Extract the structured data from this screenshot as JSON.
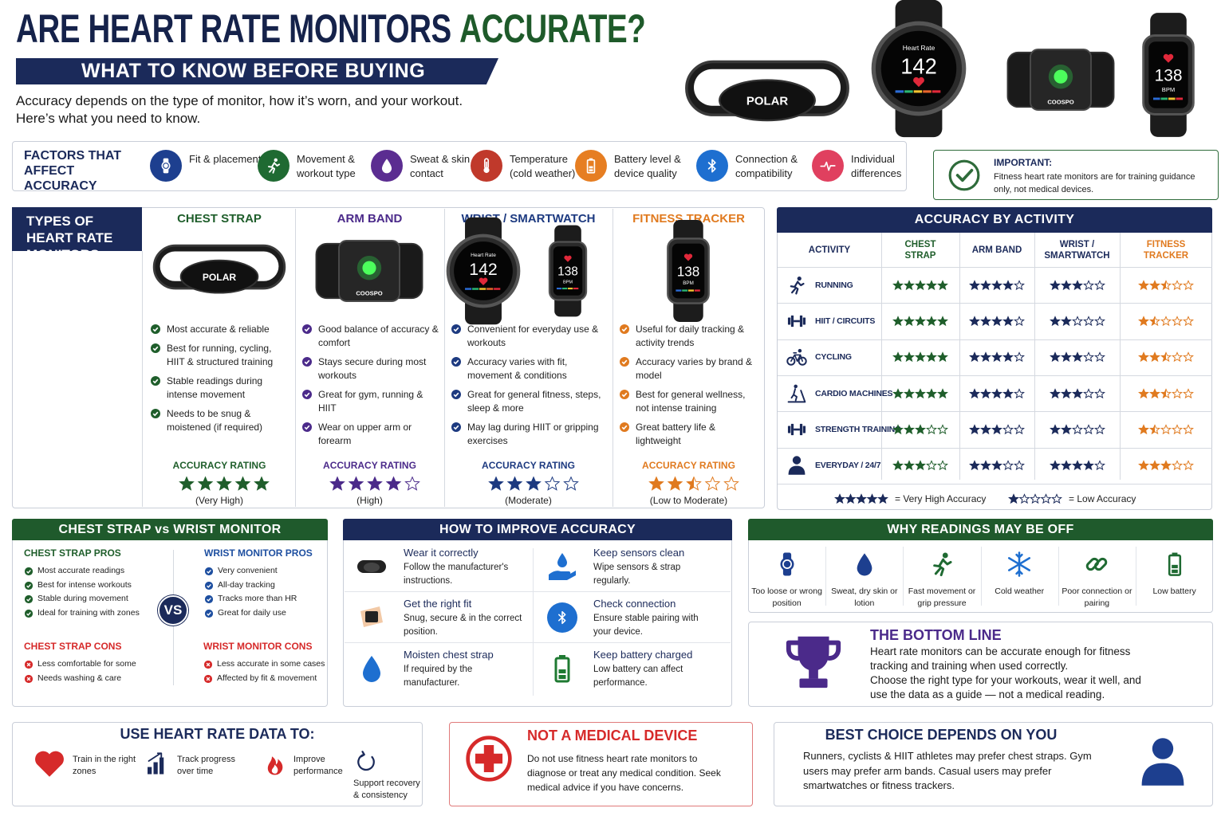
{
  "header": {
    "title_start": "ARE HEART RATE MONITORS",
    "title_end": "ACCURATE?",
    "subtitle": "WHAT TO KNOW BEFORE BUYING",
    "intro": [
      "Accuracy depends on the type of monitor, how it’s worn, and your workout.",
      "Here’s what you need to know."
    ]
  },
  "devices": {
    "brand_strap": "POLAR",
    "watch_label": "Heart Rate",
    "watch_value": "142",
    "brand_arm": "COOSPO",
    "tracker_value": "138",
    "tracker_unit": "BPM"
  },
  "factors": {
    "title": "FACTORS THAT AFFECT ACCURACY",
    "items": [
      "Fit & placement",
      "Movement & workout type",
      "Sweat & skin contact",
      "Temperature (cold weather)",
      "Battery level & device quality",
      "Connection & compatibility",
      "Individual differences"
    ]
  },
  "important": {
    "title": "IMPORTANT:",
    "text": "Fitness heart rate monitors are for training guidance only, not medical devices."
  },
  "types": {
    "title": "TYPES OF HEART RATE MONITORS",
    "rating_heading": "ACCURACY RATING",
    "columns": [
      {
        "name": "CHEST STRAP",
        "color": "#1f5e2b",
        "points": [
          "Most accurate & reliable",
          "Best for running, cycling, HIIT & structured training",
          "Stable readings during intense movement",
          "Needs to be snug & moistened (if required)"
        ],
        "rating": 5,
        "rating_text": "(Very High)"
      },
      {
        "name": "ARM BAND",
        "color": "#4b2a8a",
        "points": [
          "Good balance of accuracy & comfort",
          "Stays secure during most workouts",
          "Great for gym, running & HIIT",
          "Wear on upper arm or forearm"
        ],
        "rating": 4,
        "rating_text": "(High)"
      },
      {
        "name": "WRIST / SMARTWATCH",
        "color": "#1d3a80",
        "points": [
          "Convenient for everyday use & workouts",
          "Accuracy varies with fit, movement & conditions",
          "Great for general fitness, steps, sleep & more",
          "May lag during HIIT or gripping exercises"
        ],
        "rating": 3,
        "rating_text": "(Moderate)"
      },
      {
        "name": "FITNESS TRACKER",
        "color": "#e07a1f",
        "points": [
          "Useful for daily tracking & activity trends",
          "Accuracy varies by brand & model",
          "Best for general wellness, not intense training",
          "Great battery life & lightweight"
        ],
        "rating": 2.5,
        "rating_text": "(Low to Moderate)"
      }
    ]
  },
  "accuracy": {
    "title": "ACCURACY BY ACTIVITY",
    "headers": [
      "ACTIVITY",
      "CHEST STRAP",
      "ARM BAND",
      "WRIST / SMARTWATCH",
      "FITNESS TRACKER"
    ],
    "column_colors": [
      "#1f5e2b",
      "#1b2a5a",
      "#1b2a5a",
      "#e07a1f"
    ],
    "rows": [
      {
        "activity": "RUNNING",
        "ratings": [
          5,
          4,
          3,
          2.5
        ]
      },
      {
        "activity": "HIIT / CIRCUITS",
        "ratings": [
          5,
          4,
          2,
          1.5
        ]
      },
      {
        "activity": "CYCLING",
        "ratings": [
          5,
          4,
          3,
          2.5
        ]
      },
      {
        "activity": "CARDIO MACHINES",
        "ratings": [
          5,
          4,
          3,
          2.5
        ]
      },
      {
        "activity": "STRENGTH TRAINING",
        "ratings": [
          3,
          3,
          2,
          1.5
        ]
      },
      {
        "activity": "EVERYDAY / 24/7",
        "ratings": [
          3,
          3,
          4,
          3
        ]
      }
    ],
    "legend": [
      {
        "stars": 5,
        "label": "= Very High Accuracy"
      },
      {
        "stars": 1,
        "label": "= Low Accuracy"
      }
    ]
  },
  "comparison": {
    "title": "CHEST STRAP vs WRIST MONITOR",
    "vs": "VS",
    "chest_pros": {
      "title": "CHEST STRAP PROS",
      "items": [
        "Most accurate readings",
        "Best for intense workouts",
        "Stable during movement",
        "Ideal for training with zones"
      ]
    },
    "wrist_pros": {
      "title": "WRIST MONITOR PROS",
      "items": [
        "Very convenient",
        "All-day tracking",
        "Tracks more than HR",
        "Great for daily use"
      ]
    },
    "chest_cons": {
      "title": "CHEST STRAP CONS",
      "items": [
        "Less comfortable for some",
        "Needs washing & care"
      ]
    },
    "wrist_cons": {
      "title": "WRIST MONITOR CONS",
      "items": [
        "Less accurate in some cases",
        "Affected by fit & movement"
      ]
    }
  },
  "improve": {
    "title": "HOW TO IMPROVE ACCURACY",
    "tips": [
      {
        "title": "Wear it correctly",
        "text": "Follow the manufacturer's instructions."
      },
      {
        "title": "Keep sensors clean",
        "text": "Wipe sensors & strap regularly."
      },
      {
        "title": "Get the right fit",
        "text": "Snug, secure & in the correct position."
      },
      {
        "title": "Check connection",
        "text": "Ensure stable pairing with your device."
      },
      {
        "title": "Moisten chest strap",
        "text": "If required by the manufacturer."
      },
      {
        "title": "Keep battery charged",
        "text": "Low battery can affect performance."
      }
    ]
  },
  "off": {
    "title": "WHY READINGS MAY BE OFF",
    "items": [
      "Too loose or wrong position",
      "Sweat, dry skin or lotion",
      "Fast movement or grip pressure",
      "Cold weather",
      "Poor connection or pairing",
      "Low battery"
    ]
  },
  "bottom_line": {
    "title": "THE BOTTOM LINE",
    "text": [
      "Heart rate monitors can be accurate enough for fitness tracking and training when used correctly.",
      "Choose the right type for your workouts, wear it well, and use the data as a guide — not a medical reading."
    ]
  },
  "use": {
    "title": "USE HEART RATE DATA TO:",
    "items": [
      "Train in the right zones",
      "Track progress over time",
      "Improve performance",
      "Support recovery & consistency"
    ]
  },
  "medical": {
    "title": "NOT A MEDICAL DEVICE",
    "text": "Do not use fitness heart rate monitors to diagnose or treat any medical condition. Seek medical advice if you have concerns."
  },
  "best": {
    "title": "BEST CHOICE DEPENDS ON YOU",
    "text": "Runners, cyclists & HIIT athletes may prefer chest straps. Gym users may prefer arm bands. Casual users may prefer smartwatches or fitness trackers."
  }
}
